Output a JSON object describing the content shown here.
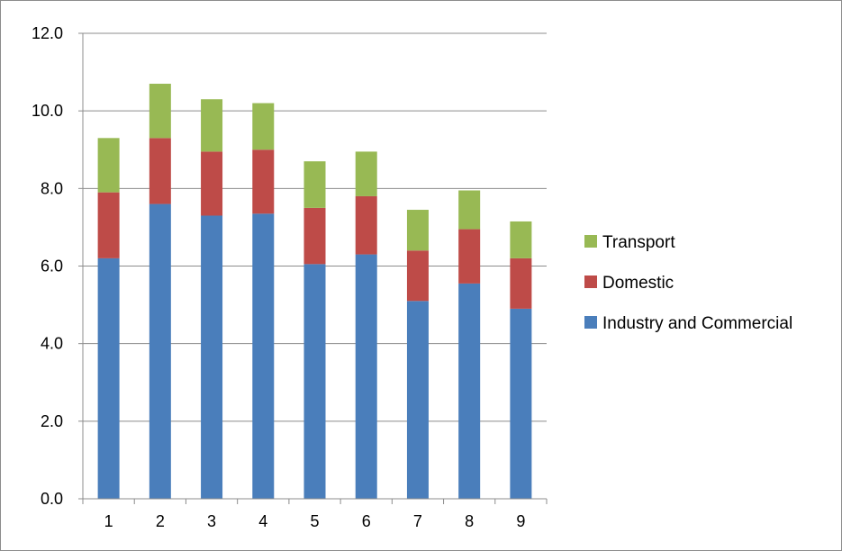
{
  "chart_data": {
    "type": "bar",
    "stacked": true,
    "categories": [
      "1",
      "2",
      "3",
      "4",
      "5",
      "6",
      "7",
      "8",
      "9"
    ],
    "series": [
      {
        "name": "Industry and Commercial",
        "color": "#4a7ebb",
        "values": [
          6.2,
          7.6,
          7.3,
          7.35,
          6.05,
          6.3,
          5.1,
          5.55,
          4.9
        ]
      },
      {
        "name": "Domestic",
        "color": "#be4b48",
        "values": [
          1.7,
          1.7,
          1.65,
          1.65,
          1.45,
          1.5,
          1.3,
          1.4,
          1.3
        ]
      },
      {
        "name": "Transport",
        "color": "#98b954",
        "values": [
          1.4,
          1.4,
          1.35,
          1.2,
          1.2,
          1.15,
          1.05,
          1.0,
          0.95
        ]
      }
    ],
    "y_ticks": [
      "0.0",
      "2.0",
      "4.0",
      "6.0",
      "8.0",
      "10.0",
      "12.0"
    ],
    "ylim": [
      0,
      12
    ],
    "grid": true,
    "legend_position": "right",
    "legend_order": [
      "Transport",
      "Domestic",
      "Industry and Commercial"
    ],
    "title": "",
    "xlabel": "",
    "ylabel": ""
  }
}
